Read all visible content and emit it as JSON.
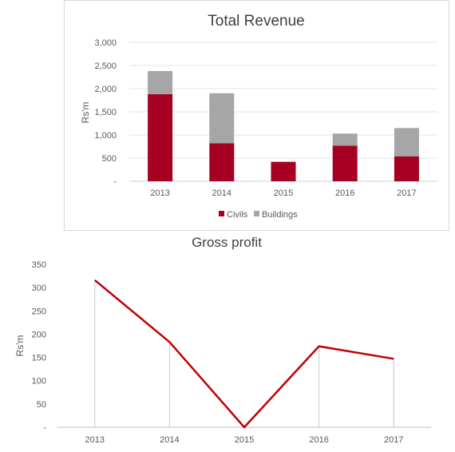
{
  "chart_data": [
    {
      "type": "bar",
      "stacked": true,
      "title": "Total Revenue",
      "xlabel": "",
      "ylabel": "Rs'm",
      "categories": [
        "2013",
        "2014",
        "2015",
        "2016",
        "2017"
      ],
      "series": [
        {
          "name": "Civils",
          "color": "#a50021",
          "values": [
            1880,
            820,
            420,
            770,
            540
          ]
        },
        {
          "name": "Buildings",
          "color": "#a6a6a6",
          "values": [
            500,
            1080,
            0,
            260,
            610
          ]
        }
      ],
      "ylim": [
        0,
        3000
      ],
      "yticks": [
        "-",
        "500",
        "1,000",
        "1,500",
        "2,000",
        "2,500",
        "3,000"
      ],
      "grid": true,
      "legend_position": "bottom"
    },
    {
      "type": "line",
      "title": "Gross profit",
      "xlabel": "",
      "ylabel": "Rs'm",
      "categories": [
        "2013",
        "2014",
        "2015",
        "2016",
        "2017"
      ],
      "series": [
        {
          "color": "#c00000",
          "values": [
            316,
            183,
            0,
            174,
            147
          ]
        }
      ],
      "ylim": [
        0,
        350
      ],
      "yticks": [
        "-",
        "50",
        "100",
        "150",
        "200",
        "250",
        "300",
        "350"
      ],
      "grid": false,
      "drop_lines": true
    }
  ]
}
